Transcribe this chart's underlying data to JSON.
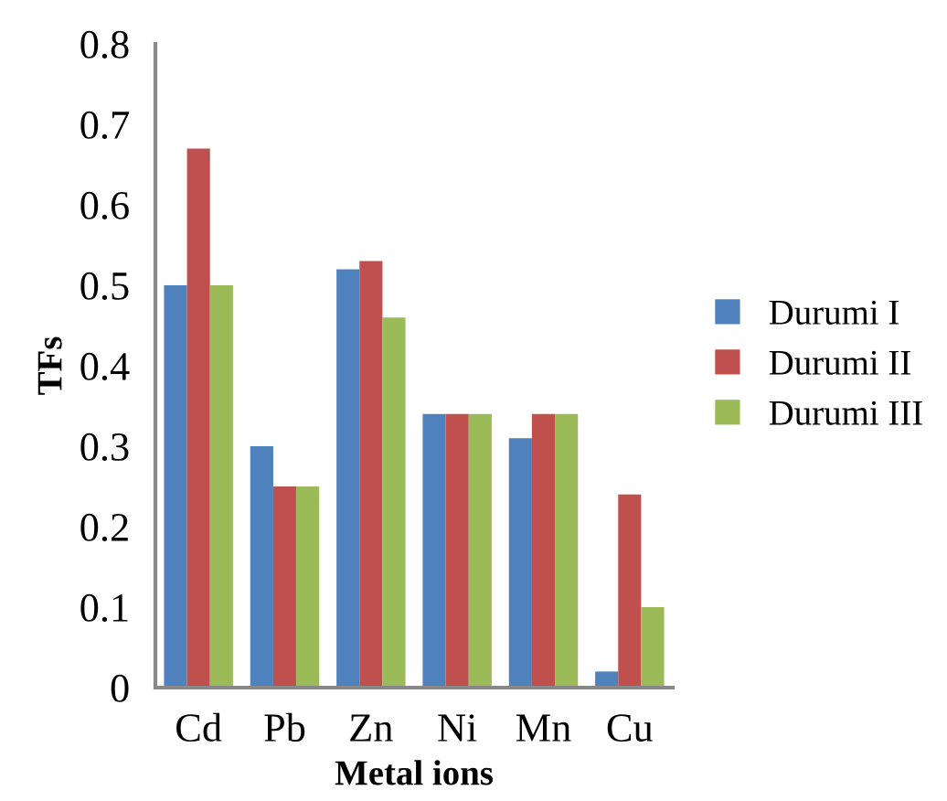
{
  "chart_data": {
    "type": "bar",
    "xlabel": "Metal ions",
    "ylabel": "TFs",
    "categories": [
      "Cd",
      "Pb",
      "Zn",
      "Ni",
      "Mn",
      "Cu"
    ],
    "series": [
      {
        "name": "Durumi I",
        "color": "#4f81bd",
        "values": [
          0.5,
          0.3,
          0.52,
          0.34,
          0.31,
          0.02
        ]
      },
      {
        "name": "Durumi II",
        "color": "#c0504d",
        "values": [
          0.67,
          0.25,
          0.53,
          0.34,
          0.34,
          0.24
        ]
      },
      {
        "name": "Durumi III",
        "color": "#9bbb59",
        "values": [
          0.5,
          0.25,
          0.46,
          0.34,
          0.34,
          0.1
        ]
      }
    ],
    "ylim": [
      0,
      0.8
    ],
    "yticks": [
      0,
      0.1,
      0.2,
      0.3,
      0.4,
      0.5,
      0.6,
      0.7,
      0.8
    ],
    "grid": false,
    "legend": "right"
  }
}
